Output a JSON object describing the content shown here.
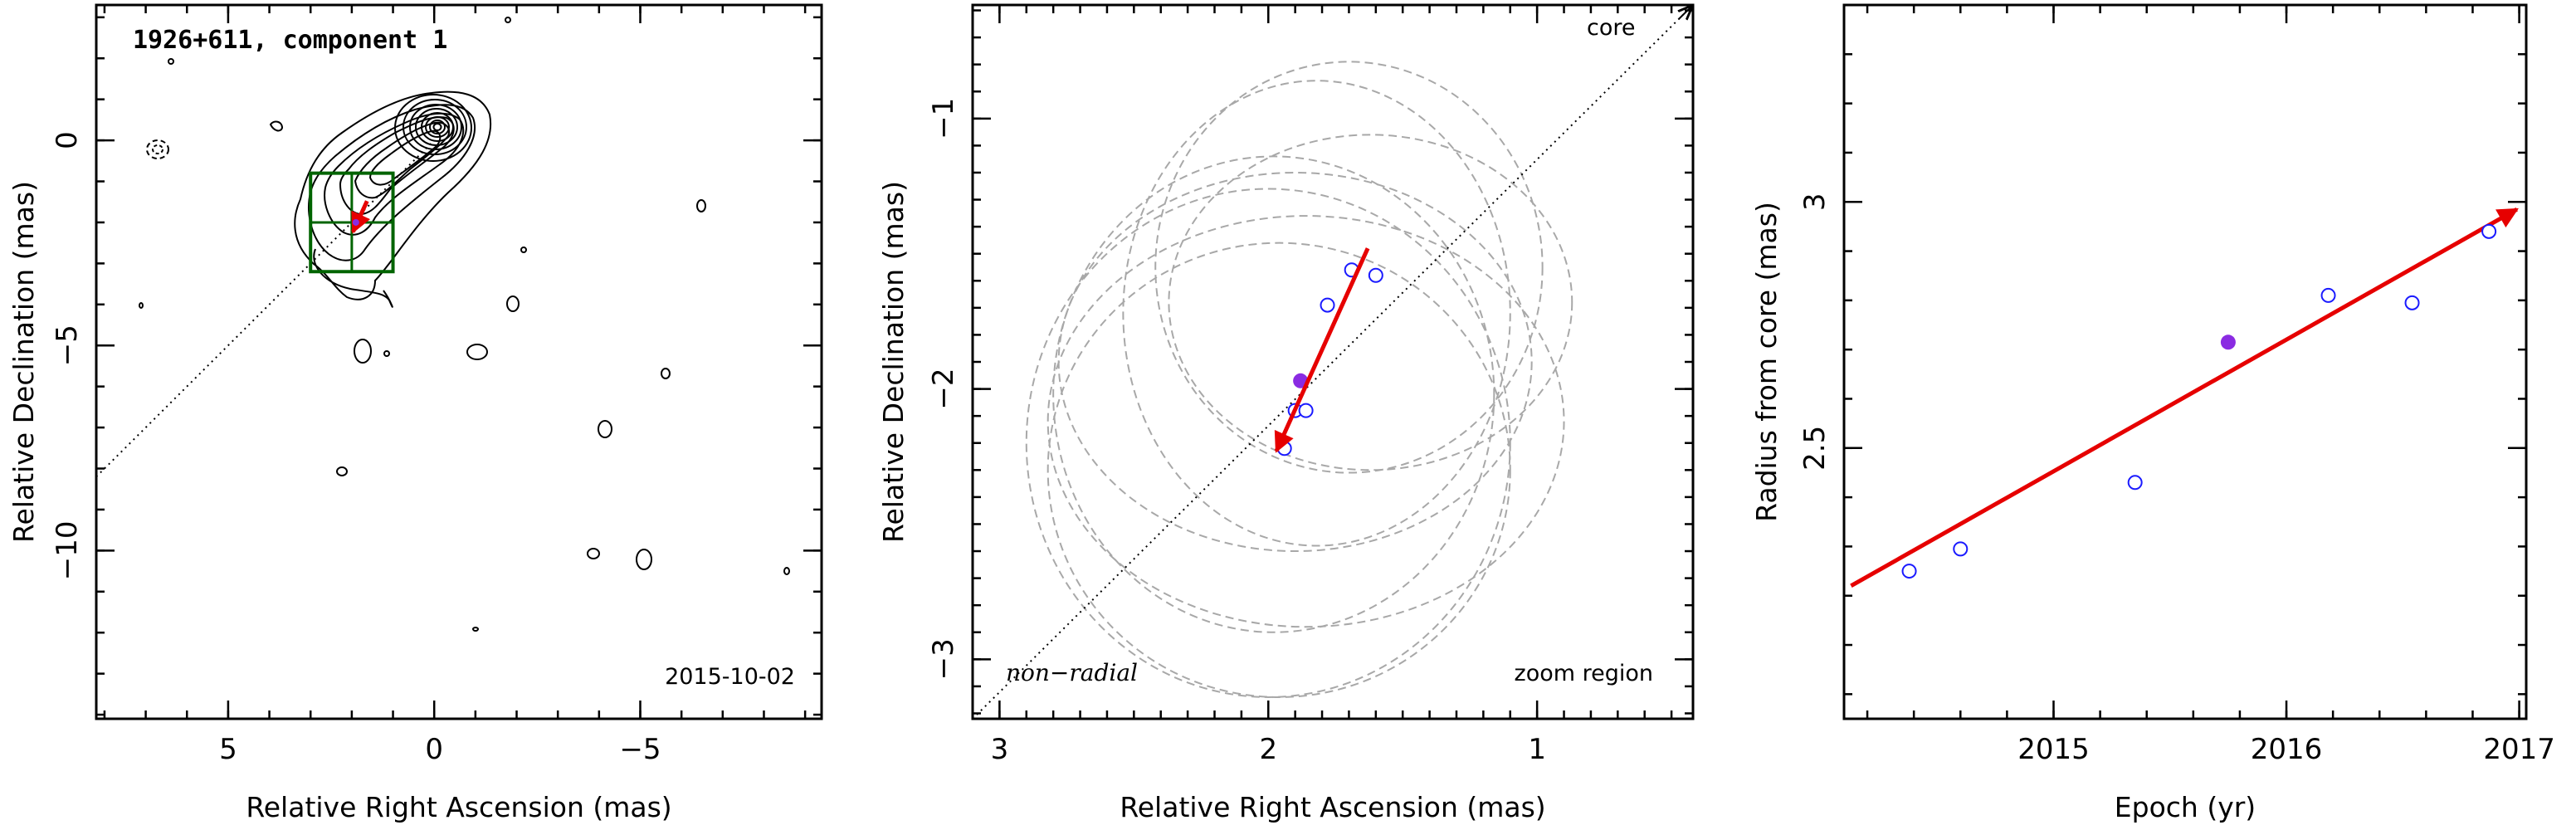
{
  "chart_data": [
    {
      "type": "scatter",
      "panel": "image",
      "title": "1926+611, component 1",
      "date_label": "2015-10-02",
      "xlabel": "Relative Right Ascension (mas)",
      "ylabel": "Relative Declination (mas)",
      "xlim": [
        8.2,
        -9.4
      ],
      "ylim": [
        -14.1,
        3.3
      ],
      "xticks": [
        5,
        0,
        -5
      ],
      "yticks": [
        0,
        -5,
        -10
      ],
      "core": {
        "x": 0,
        "y": 0
      },
      "radial_line": {
        "x": [
          8.2,
          0
        ],
        "y": [
          -8.2,
          0
        ]
      },
      "component": {
        "x": 1.9,
        "y": -2.0
      },
      "motion_arrow": {
        "from": [
          1.63,
          -1.48
        ],
        "to": [
          1.97,
          -2.23
        ]
      },
      "zoom_box": {
        "x": [
          3.0,
          1.0
        ],
        "y": [
          -3.2,
          -0.8
        ]
      },
      "colors": {
        "contour": "#000000",
        "box": "#006400",
        "arrow": "#e60000",
        "component": "#8a2be2"
      }
    },
    {
      "type": "scatter",
      "panel": "zoom",
      "xlabel": "Relative Right Ascension (mas)",
      "ylabel": "Relative Declination (mas)",
      "xlim": [
        3.1,
        0.42
      ],
      "ylim": [
        -3.22,
        -0.58
      ],
      "xticks": [
        3,
        2,
        1
      ],
      "yticks": [
        -1,
        -2,
        -3
      ],
      "labels": {
        "core": "core",
        "non_radial": "non−radial",
        "zoom": "zoom region"
      },
      "epochs_open": [
        {
          "x": 1.94,
          "y": -2.22
        },
        {
          "x": 1.9,
          "y": -2.08
        },
        {
          "x": 1.86,
          "y": -2.08
        },
        {
          "x": 1.78,
          "y": -1.69
        },
        {
          "x": 1.69,
          "y": -1.56
        },
        {
          "x": 1.6,
          "y": -1.58
        }
      ],
      "epoch_filled": {
        "x": 1.88,
        "y": -1.97
      },
      "error_ellipses": [
        {
          "cx": 1.62,
          "cy": -1.68,
          "rx": 0.75,
          "ry": 0.62
        },
        {
          "cx": 1.82,
          "cy": -1.72,
          "rx": 0.72,
          "ry": 0.86
        },
        {
          "cx": 1.9,
          "cy": -1.9,
          "rx": 0.88,
          "ry": 0.7
        },
        {
          "cx": 1.98,
          "cy": -2.02,
          "rx": 0.82,
          "ry": 0.88
        },
        {
          "cx": 1.86,
          "cy": -2.12,
          "rx": 0.96,
          "ry": 0.76
        },
        {
          "cx": 1.96,
          "cy": -2.3,
          "rx": 0.86,
          "ry": 0.84
        },
        {
          "cx": 2.0,
          "cy": -2.2,
          "rx": 0.9,
          "ry": 0.94
        },
        {
          "cx": 1.7,
          "cy": -1.55,
          "rx": 0.72,
          "ry": 0.76
        }
      ],
      "radial_line": {
        "x": [
          3.1,
          0.42
        ],
        "y": [
          -3.22,
          -0.58
        ]
      },
      "motion_arrow": {
        "from": [
          1.63,
          -1.48
        ],
        "to": [
          1.97,
          -2.23
        ]
      },
      "colors": {
        "ellipse": "#a8a8a8",
        "open": "#1a1aff",
        "filled": "#8a2be2",
        "arrow": "#e60000"
      }
    },
    {
      "type": "scatter",
      "panel": "radius",
      "xlabel": "Epoch (yr)",
      "ylabel": "Radius from core (mas)",
      "xlim": [
        2014.1,
        2017.03
      ],
      "ylim": [
        1.95,
        3.4
      ],
      "xticks": [
        2015,
        2016,
        2017
      ],
      "yticks": [
        2.5,
        3
      ],
      "series": [
        {
          "marker": "open",
          "x": [
            2014.38,
            2014.6,
            2015.35,
            2016.18,
            2016.54,
            2016.87
          ],
          "y": [
            2.25,
            2.295,
            2.43,
            2.81,
            2.795,
            2.94
          ]
        },
        {
          "marker": "filled",
          "x": [
            2015.75
          ],
          "y": [
            2.715
          ]
        }
      ],
      "fit_arrow": {
        "from": [
          2014.13,
          2.22
        ],
        "to": [
          2016.99,
          2.985
        ]
      },
      "colors": {
        "open": "#1a1aff",
        "filled": "#8a2be2",
        "arrow": "#e60000"
      }
    }
  ]
}
